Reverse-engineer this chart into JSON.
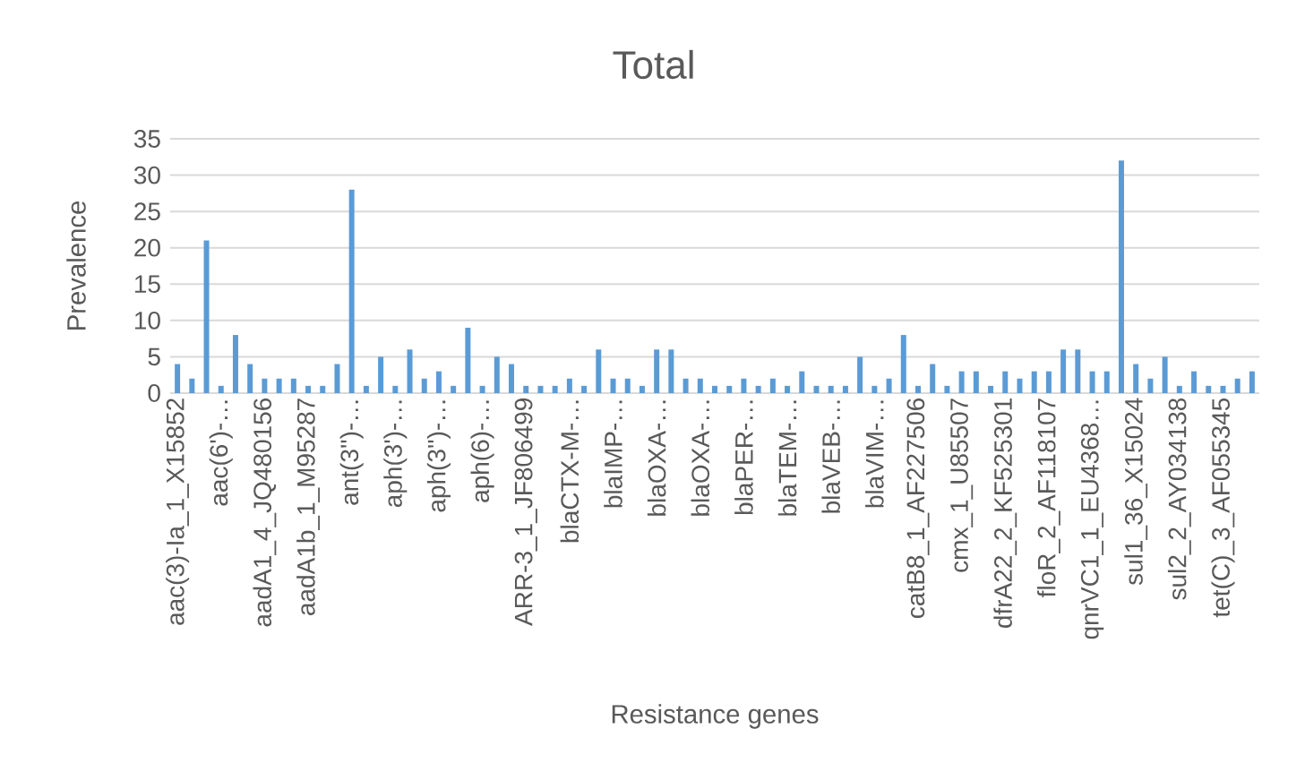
{
  "chart_data": {
    "type": "bar",
    "title": "Total",
    "xlabel": "Resistance genes",
    "ylabel": "Prevalence",
    "categories": [
      "aac(3)-Ia_1_X15852",
      null,
      null,
      "aac(6')-…",
      null,
      null,
      "aadA1_4_JQ480156",
      null,
      null,
      "aadA1b_1_M95287",
      null,
      null,
      "ant(3'')-…",
      null,
      null,
      "aph(3')-…",
      null,
      null,
      "aph(3'')-…",
      null,
      null,
      "aph(6)-…",
      null,
      null,
      "ARR-3_1_JF806499",
      null,
      null,
      "blaCTX-M-…",
      null,
      null,
      "blaIMP-…",
      null,
      null,
      "blaOXA-…",
      null,
      null,
      "blaOXA-…",
      null,
      null,
      "blaPER-…",
      null,
      null,
      "blaTEM-…",
      null,
      null,
      "blaVEB-…",
      null,
      null,
      "blaVIM-…",
      null,
      null,
      "catB8_1_AF227506",
      null,
      null,
      "cmx_1_U85507",
      null,
      null,
      "dfrA22_2_KF525301",
      null,
      null,
      "floR_2_AF118107",
      null,
      null,
      "qnrVC1_1_EU4368…",
      null,
      null,
      "sul1_36_X15024",
      null,
      null,
      "sul2_2_AY034138",
      null,
      null,
      "tet(C)_3_AF055345",
      null,
      null
    ],
    "values": [
      4,
      2,
      21,
      1,
      8,
      4,
      2,
      2,
      2,
      1,
      1,
      4,
      28,
      1,
      5,
      1,
      6,
      2,
      3,
      1,
      9,
      1,
      5,
      4,
      1,
      1,
      1,
      2,
      1,
      6,
      2,
      2,
      1,
      6,
      6,
      2,
      2,
      1,
      1,
      2,
      1,
      2,
      1,
      3,
      1,
      1,
      1,
      5,
      1,
      2,
      8,
      1,
      4,
      1,
      3,
      3,
      1,
      3,
      2,
      3,
      3,
      6,
      6,
      3,
      3,
      32,
      4,
      2,
      5,
      1,
      3,
      1,
      1,
      2,
      3
    ],
    "color": "#5b9bd5",
    "ylim": [
      0,
      35
    ],
    "yticks": [
      0,
      5,
      10,
      15,
      20,
      25,
      30,
      35
    ],
    "grid": "y"
  }
}
